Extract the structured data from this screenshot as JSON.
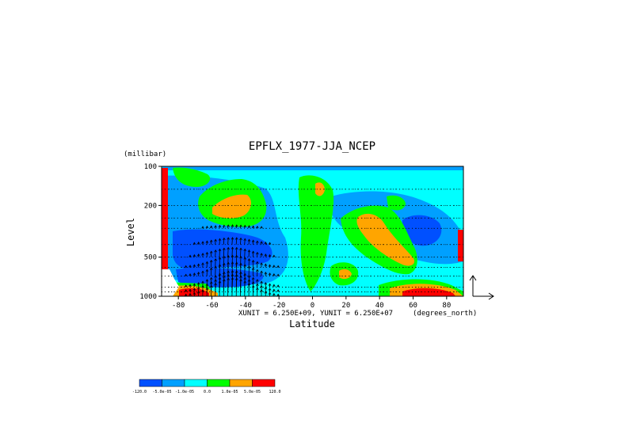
{
  "chart_data": {
    "type": "heatmap",
    "title": "EPFLX_1977-JJA_NCEP",
    "xlabel": "Latitude",
    "ylabel": "Level",
    "y_unit": "(millibar)",
    "x_unit": "(degrees_north)",
    "unit_note": "XUNIT = 6.250E+09, YUNIT = 6.250E+07",
    "xlim": [
      -90,
      90
    ],
    "ylim": [
      1000,
      100
    ],
    "y_scale": "log",
    "x_ticks": [
      -80,
      -60,
      -40,
      -20,
      0,
      20,
      40,
      60,
      80
    ],
    "x_tick_labels": [
      "-80",
      "-60",
      "-40",
      "-20",
      "0",
      "20",
      "40",
      "60",
      "80"
    ],
    "y_ticks": [
      100,
      200,
      500,
      1000
    ],
    "y_tick_labels": [
      "100",
      "200",
      "500",
      "1000"
    ],
    "grid": "dotted pressure levels",
    "levels": [
      100,
      150,
      200,
      250,
      300,
      400,
      500,
      600,
      700,
      850,
      925,
      1000
    ],
    "legend": {
      "placement": "bottom-left",
      "labels": [
        "-120.0",
        "-5.0e-05",
        "-1.0e-05",
        "0.0",
        "1.0e-05",
        "5.0e-05",
        "120.0"
      ],
      "colors": [
        "#0050ff",
        "#00a0ff",
        "#00ffff",
        "#00ff00",
        "#ffa500",
        "#ff0000"
      ]
    },
    "background_color": "#00ffff"
  }
}
